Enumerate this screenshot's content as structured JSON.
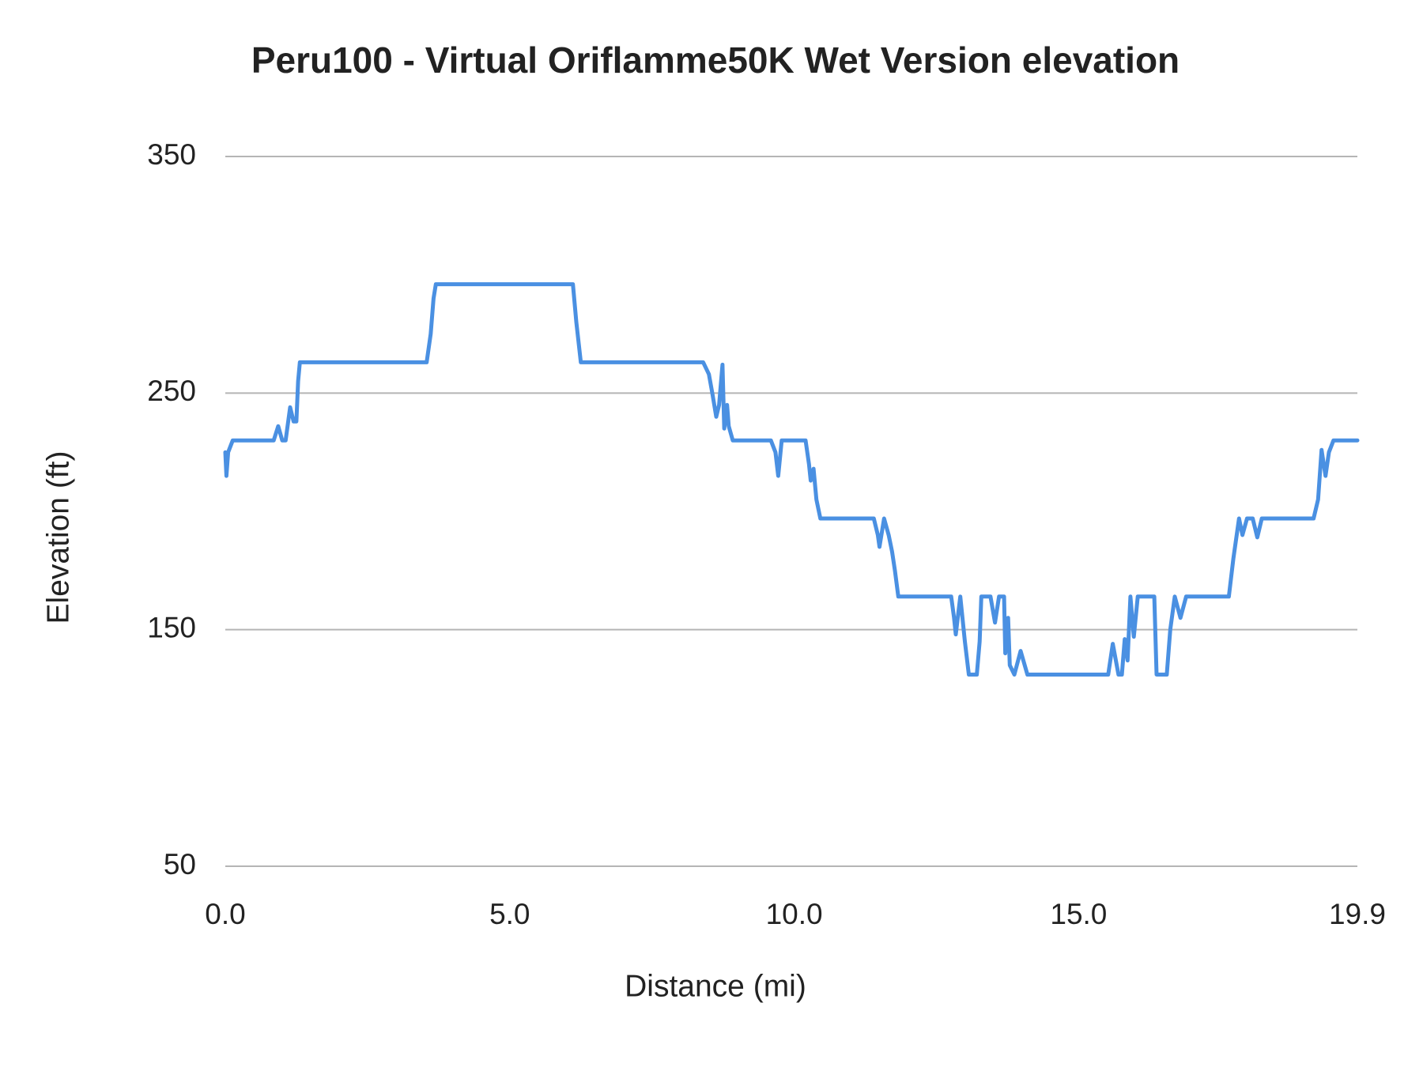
{
  "chart_data": {
    "type": "line",
    "title": "Peru100 - Virtual Oriflamme50K Wet Version elevation",
    "x_label": "Distance (mi)",
    "y_label": "Elevation (ft)",
    "xlim": [
      0,
      19.9
    ],
    "xticks": [
      {
        "value": 0,
        "label": "0.0"
      },
      {
        "value": 5,
        "label": "5.0"
      },
      {
        "value": 10,
        "label": "10.0"
      },
      {
        "value": 15,
        "label": "15.0"
      },
      19.9
    ],
    "ylim": [
      50,
      350
    ],
    "yticks": [
      50,
      150,
      250,
      350
    ],
    "grid": true,
    "series": [
      {
        "color": "#4a90e2",
        "x": [
          0,
          0.02,
          0.05,
          0.13,
          0.85,
          0.93,
          1.0,
          1.06,
          1.14,
          1.2,
          1.25,
          1.28,
          1.31,
          3.54,
          3.61,
          3.66,
          3.7,
          6.11,
          6.17,
          6.25,
          8.4,
          8.5,
          8.56,
          8.63,
          8.68,
          8.74,
          8.77,
          8.82,
          8.85,
          8.92,
          9.59,
          9.67,
          9.72,
          9.78,
          10.2,
          10.26,
          10.29,
          10.34,
          10.39,
          10.46,
          11.4,
          11.47,
          11.5,
          11.58,
          11.66,
          11.72,
          11.77,
          11.83,
          12.76,
          12.81,
          12.84,
          12.92,
          13.0,
          13.07,
          13.21,
          13.26,
          13.29,
          13.45,
          13.53,
          13.6,
          13.69,
          13.71,
          13.76,
          13.79,
          13.87,
          13.98,
          14.1,
          15.52,
          15.6,
          15.7,
          15.76,
          15.81,
          15.86,
          15.91,
          15.97,
          16.04,
          16.33,
          16.37,
          16.55,
          16.61,
          16.69,
          16.79,
          16.89,
          17.64,
          17.72,
          17.82,
          17.88,
          17.96,
          18.06,
          18.14,
          18.22,
          19.13,
          19.21,
          19.27,
          19.34,
          19.4,
          19.48,
          19.9
        ],
        "values": [
          225,
          215,
          225,
          230,
          230,
          236,
          230,
          230,
          244,
          238,
          238,
          255,
          263,
          263,
          275,
          290,
          296,
          296,
          280,
          263,
          263,
          258,
          250,
          240,
          245,
          262,
          235,
          245,
          236,
          230,
          230,
          225,
          215,
          230,
          230,
          220,
          213,
          218,
          205,
          197,
          197,
          190,
          185,
          197,
          190,
          183,
          175,
          164,
          164,
          155,
          148,
          164,
          145,
          131,
          131,
          145,
          164,
          164,
          153,
          164,
          164,
          140,
          155,
          135,
          131,
          141,
          131,
          131,
          144,
          131,
          131,
          146,
          137,
          164,
          147,
          164,
          164,
          131,
          131,
          150,
          164,
          155,
          164,
          164,
          180,
          197,
          190,
          197,
          197,
          189,
          197,
          197,
          205,
          226,
          215,
          225,
          230,
          230
        ]
      }
    ]
  }
}
